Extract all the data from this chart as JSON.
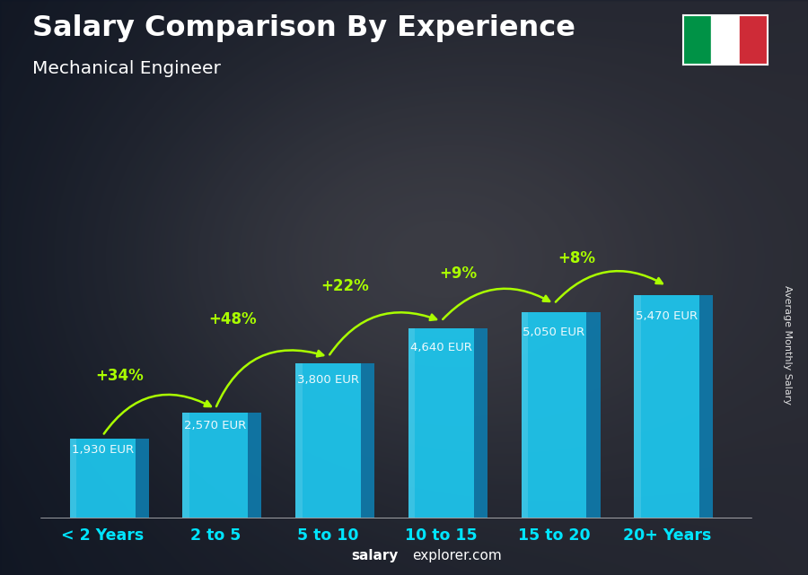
{
  "title": "Salary Comparison By Experience",
  "subtitle": "Mechanical Engineer",
  "categories": [
    "< 2 Years",
    "2 to 5",
    "5 to 10",
    "10 to 15",
    "15 to 20",
    "20+ Years"
  ],
  "values": [
    1930,
    2570,
    3800,
    4640,
    5050,
    5470
  ],
  "value_labels": [
    "1,930 EUR",
    "2,570 EUR",
    "3,800 EUR",
    "4,640 EUR",
    "5,050 EUR",
    "5,470 EUR"
  ],
  "pct_labels": [
    "+34%",
    "+48%",
    "+22%",
    "+9%",
    "+8%"
  ],
  "bar_face_color": "#1ec8f0",
  "bar_side_color": "#0f7aab",
  "bar_top_color": "#8ae6ff",
  "bar_highlight": "#5dd8f8",
  "ylabel": "Average Monthly Salary",
  "watermark_normal": "explorer.com",
  "watermark_bold": "salary",
  "bg_color": "#1a2535",
  "text_color": "#ffffff",
  "pct_color": "#aaff00",
  "arrow_color": "#aaff00",
  "italy_flag_green": "#009246",
  "italy_flag_white": "#ffffff",
  "italy_flag_red": "#ce2b37",
  "xlabel_color": "#00e5ff",
  "value_label_color": "#ffffff",
  "val_label_outside_color": "#cccccc"
}
